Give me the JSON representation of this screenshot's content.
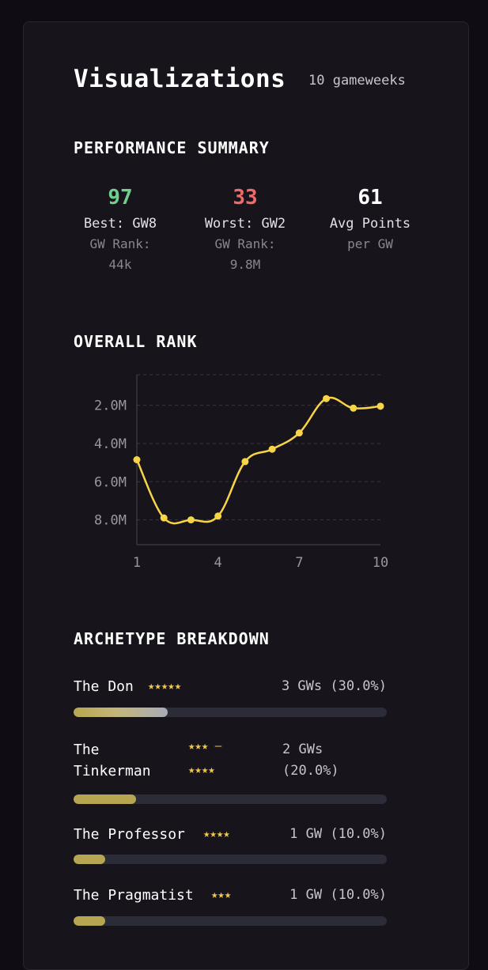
{
  "header": {
    "title": "Visualizations",
    "gameweeks": "10 gameweeks"
  },
  "summary": {
    "heading": "PERFORMANCE SUMMARY",
    "best": {
      "value": "97",
      "label": "Best: GW8",
      "sub1": "GW Rank:",
      "sub2": "44k",
      "color": "#6fd08c"
    },
    "worst": {
      "value": "33",
      "label": "Worst: GW2",
      "sub1": "GW Rank:",
      "sub2": "9.8M",
      "color": "#ef6b6b"
    },
    "avg": {
      "value": "61",
      "label": "Avg Points",
      "sub1": "per GW",
      "color": "#ffffff"
    }
  },
  "rank": {
    "heading": "OVERALL RANK"
  },
  "chart_data": {
    "type": "line",
    "x": [
      1,
      2,
      3,
      4,
      5,
      6,
      7,
      8,
      9,
      10
    ],
    "y": [
      4.85,
      7.9,
      8.0,
      7.8,
      4.95,
      4.3,
      3.45,
      1.65,
      2.15,
      2.05
    ],
    "xticks": [
      "1",
      "4",
      "7",
      "10"
    ],
    "xtick_values": [
      1,
      4,
      7,
      10
    ],
    "yticks": [
      "2.0M",
      "4.0M",
      "6.0M",
      "8.0M"
    ],
    "ytick_values": [
      2,
      4,
      6,
      8
    ],
    "xlim": [
      1,
      10
    ],
    "ylim": [
      0.4,
      9.3
    ],
    "y_inverted": true,
    "grid": "horizontal dashed",
    "line_color": "#f7d547"
  },
  "archetypes": {
    "heading": "ARCHETYPE BREAKDOWN",
    "items": [
      {
        "name": "The Don",
        "stars": "★★★★★",
        "count": "3 GWs (30.0%)",
        "fraction": 0.3
      },
      {
        "name_line1": "The",
        "name_line2": "Tinkerman",
        "stars_line1": "★★★ –",
        "stars_line2": "★★★★",
        "count_line1": "2 GWs",
        "count_line2": "(20.0%)",
        "fraction": 0.2
      },
      {
        "name": "The Professor",
        "stars": "★★★★",
        "count": "1 GW (10.0%)",
        "fraction": 0.1
      },
      {
        "name": "The Pragmatist",
        "stars": "★★★",
        "count": "1 GW (10.0%)",
        "fraction": 0.1
      }
    ]
  }
}
